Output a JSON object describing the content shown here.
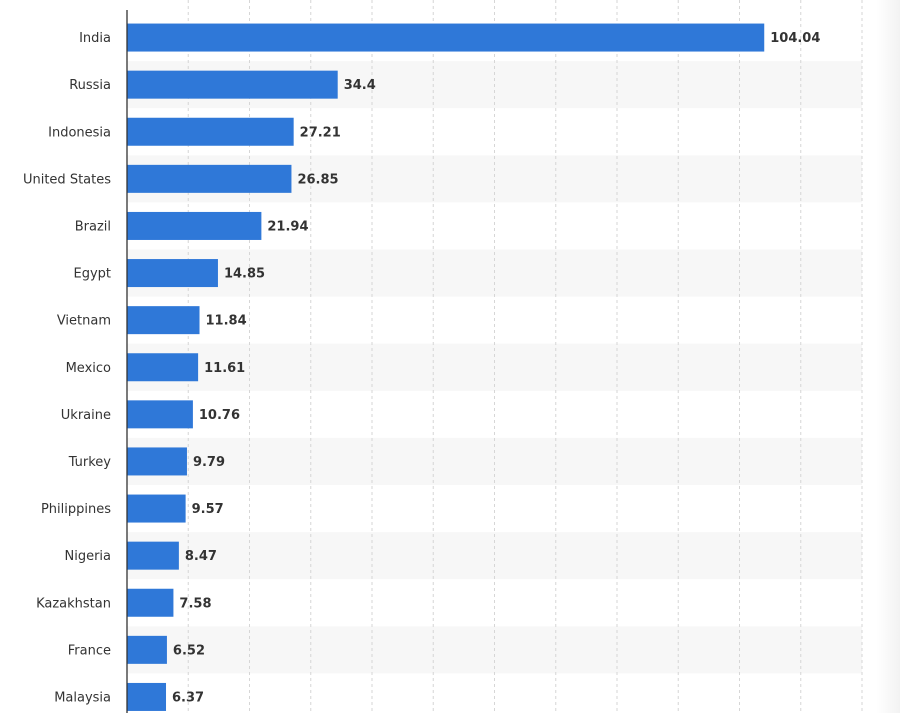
{
  "chart_data": {
    "type": "bar",
    "orientation": "horizontal",
    "categories": [
      "India",
      "Russia",
      "Indonesia",
      "United States",
      "Brazil",
      "Egypt",
      "Vietnam",
      "Mexico",
      "Ukraine",
      "Turkey",
      "Philippines",
      "Nigeria",
      "Kazakhstan",
      "France",
      "Malaysia"
    ],
    "values": [
      104.04,
      34.4,
      27.21,
      26.85,
      21.94,
      14.85,
      11.84,
      11.61,
      10.76,
      9.79,
      9.57,
      8.47,
      7.58,
      6.52,
      6.37
    ],
    "value_labels": [
      "104.04",
      "34.4",
      "27.21",
      "26.85",
      "21.94",
      "14.85",
      "11.84",
      "11.61",
      "10.76",
      "9.79",
      "9.57",
      "8.47",
      "7.58",
      "6.52",
      "6.37"
    ],
    "xlim": [
      0,
      120
    ],
    "grid": true,
    "legend": "none",
    "colors": {
      "bar": "#2f78d8",
      "band": "#f7f7f7",
      "grid": "#d6d6d6",
      "axis": "#333333",
      "text": "#333333"
    }
  }
}
